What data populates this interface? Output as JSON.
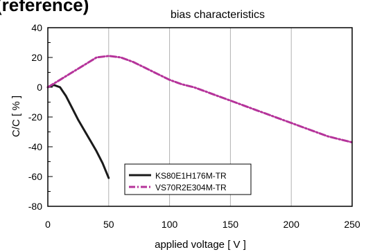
{
  "header_fragment": "(reference)",
  "chart_data": {
    "type": "line",
    "title": "bias characteristics",
    "xlabel": "applied voltage [ V ]",
    "ylabel": "C/C [ % ]",
    "xlim": [
      0,
      250
    ],
    "ylim": [
      -80,
      40
    ],
    "xticks": [
      0,
      50,
      100,
      150,
      200,
      250
    ],
    "yticks": [
      40,
      20,
      0,
      -20,
      -40,
      -60,
      -80
    ],
    "x_tick_labels": [
      "0",
      "50",
      "100",
      "150",
      "200",
      "250"
    ],
    "y_tick_labels": [
      "40",
      "20",
      "0",
      "-20",
      "-40",
      "-60",
      "-80"
    ],
    "grid": "vertical",
    "legend_position": "bottom-center",
    "series": [
      {
        "name": "KS80E1H176M-TR",
        "color": "#1a1a1a",
        "style": "solid",
        "points": [
          [
            0,
            0
          ],
          [
            5,
            1.5
          ],
          [
            10,
            0
          ],
          [
            15,
            -6
          ],
          [
            20,
            -14
          ],
          [
            25,
            -22
          ],
          [
            30,
            -29
          ],
          [
            35,
            -36
          ],
          [
            40,
            -43
          ],
          [
            45,
            -51
          ],
          [
            50,
            -61
          ]
        ]
      },
      {
        "name": "VS70R2E304M-TR",
        "color": "#b5339a",
        "style": "dashdot",
        "points": [
          [
            0,
            0
          ],
          [
            10,
            5
          ],
          [
            20,
            10
          ],
          [
            30,
            15
          ],
          [
            40,
            20
          ],
          [
            50,
            21
          ],
          [
            60,
            20
          ],
          [
            70,
            17
          ],
          [
            80,
            13
          ],
          [
            90,
            9
          ],
          [
            100,
            5
          ],
          [
            110,
            2
          ],
          [
            120,
            0
          ],
          [
            130,
            -3
          ],
          [
            140,
            -6
          ],
          [
            150,
            -9
          ],
          [
            160,
            -12
          ],
          [
            170,
            -15
          ],
          [
            180,
            -18
          ],
          [
            190,
            -21
          ],
          [
            200,
            -24
          ],
          [
            210,
            -27
          ],
          [
            220,
            -30
          ],
          [
            230,
            -33
          ],
          [
            240,
            -35
          ],
          [
            250,
            -37
          ]
        ]
      }
    ]
  }
}
